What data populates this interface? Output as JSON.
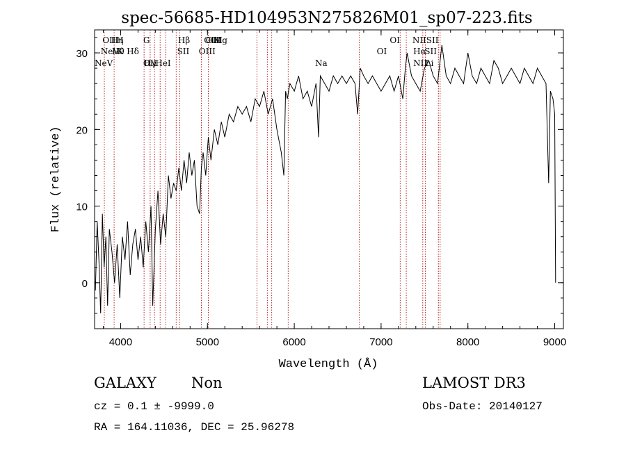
{
  "chart_data": {
    "type": "line",
    "title": "spec-56685-HD104953N275826M01_sp07-223.fits",
    "xlabel": "Wavelength (Å)",
    "ylabel": "Flux (relative)",
    "xlim": [
      3700,
      9100
    ],
    "ylim": [
      -6,
      33
    ],
    "xticks": [
      "4000",
      "5000",
      "6000",
      "7000",
      "8000",
      "9000"
    ],
    "xtick_values": [
      4000,
      5000,
      6000,
      7000,
      8000,
      9000
    ],
    "yticks": [
      "0",
      "10",
      "20",
      "30"
    ],
    "ytick_values": [
      0,
      10,
      20,
      30
    ],
    "grid": false,
    "series": [
      {
        "color": "#000000",
        "x": [
          3710,
          3730,
          3750,
          3770,
          3790,
          3810,
          3830,
          3850,
          3870,
          3900,
          3930,
          3960,
          3990,
          4020,
          4050,
          4080,
          4110,
          4140,
          4170,
          4200,
          4230,
          4260,
          4290,
          4320,
          4350,
          4370,
          4400,
          4430,
          4460,
          4490,
          4520,
          4550,
          4580,
          4610,
          4640,
          4670,
          4700,
          4730,
          4760,
          4790,
          4820,
          4850,
          4880,
          4910,
          4930,
          4950,
          4980,
          5010,
          5040,
          5080,
          5120,
          5160,
          5200,
          5250,
          5300,
          5350,
          5400,
          5450,
          5500,
          5550,
          5600,
          5650,
          5700,
          5750,
          5800,
          5850,
          5880,
          5900,
          5920,
          5950,
          6000,
          6050,
          6100,
          6150,
          6200,
          6250,
          6280,
          6300,
          6350,
          6400,
          6450,
          6500,
          6550,
          6600,
          6650,
          6700,
          6730,
          6760,
          6800,
          6850,
          6900,
          6950,
          7000,
          7050,
          7100,
          7150,
          7200,
          7250,
          7280,
          7300,
          7350,
          7400,
          7450,
          7500,
          7550,
          7600,
          7650,
          7700,
          7750,
          7800,
          7850,
          7900,
          7950,
          8000,
          8050,
          8100,
          8150,
          8200,
          8250,
          8300,
          8350,
          8400,
          8450,
          8500,
          8550,
          8600,
          8650,
          8700,
          8750,
          8800,
          8850,
          8900,
          8930,
          8950,
          8980,
          9000,
          9010
        ],
        "y": [
          -1,
          8,
          3,
          -4,
          9,
          2,
          6,
          -3,
          7,
          4,
          0,
          5,
          -2,
          6,
          3,
          8,
          1,
          5,
          7,
          3,
          6,
          2,
          8,
          4,
          10,
          -3,
          7,
          12,
          5,
          9,
          6,
          14,
          11,
          13,
          12,
          15,
          12,
          16,
          13,
          17,
          14,
          16,
          10,
          9,
          15,
          17,
          14,
          19,
          16,
          20,
          18,
          21,
          19,
          22,
          21,
          23,
          22,
          23,
          21,
          24,
          23,
          25,
          22,
          24,
          20,
          17,
          14,
          25,
          24,
          26,
          25,
          27,
          24,
          25,
          23,
          26,
          19,
          27,
          26,
          25,
          27,
          26,
          27,
          26,
          27,
          26,
          22,
          28,
          27,
          26,
          27,
          26,
          25,
          26,
          27,
          25,
          27,
          24,
          28,
          30,
          27,
          26,
          25,
          28,
          29,
          27,
          26,
          31,
          27,
          26,
          28,
          27,
          26,
          30,
          27,
          26,
          28,
          27,
          26,
          29,
          28,
          26,
          27,
          28,
          27,
          26,
          28,
          27,
          26,
          28,
          27,
          26,
          13,
          25,
          24,
          22,
          0
        ]
      }
    ],
    "lines": [
      {
        "name": "NeV",
        "wave": 3426,
        "upper": false
      },
      {
        "name": "NeV",
        "wave": 3346,
        "upper": true
      },
      {
        "name": "OII",
        "wave": 3727,
        "upper": true
      },
      {
        "name": "Hη",
        "wave": 3835,
        "upper": true
      },
      {
        "name": "H",
        "wave": 3969,
        "upper": true
      },
      {
        "name": "Hθ",
        "wave": 3798,
        "upper": false
      },
      {
        "name": "K",
        "wave": 3934,
        "upper": false
      },
      {
        "name": "Hδ",
        "wave": 4102,
        "upper": false
      },
      {
        "name": "OII",
        "wave": 4300,
        "upper": false
      },
      {
        "name": "HeI",
        "wave": 4471,
        "upper": false
      },
      {
        "name": "SII",
        "wave": 4670,
        "upper": false
      },
      {
        "name": "G",
        "wave": 4304,
        "upper": true
      },
      {
        "name": "OIII",
        "wave": 4959,
        "upper": true
      },
      {
        "name": "Hγ",
        "wave": 4341,
        "upper": false
      },
      {
        "name": "Hβ",
        "wave": 4861,
        "upper": true
      },
      {
        "name": "OIII",
        "wave": 5007,
        "upper": true
      },
      {
        "name": "Mg",
        "wave": 5175,
        "upper": true
      },
      {
        "name": "OIII",
        "wave": 5007,
        "upper": false
      },
      {
        "name": "Na",
        "wave": 5893,
        "upper": false
      },
      {
        "name": "OI",
        "wave": 6300,
        "upper": true
      },
      {
        "name": "OI",
        "wave": 6364,
        "upper": false
      },
      {
        "name": "NII",
        "wave": 6548,
        "upper": true
      },
      {
        "name": "SII",
        "wave": 6717,
        "upper": true
      },
      {
        "name": "Hα",
        "wave": 6563,
        "upper": false
      },
      {
        "name": "SII",
        "wave": 6731,
        "upper": false
      },
      {
        "name": "NII",
        "wave": 6583,
        "upper": false
      },
      {
        "name": "Li",
        "wave": 6708,
        "upper": false
      }
    ],
    "marker_lines": [
      3812,
      3925,
      4270,
      4340,
      4390,
      4455,
      4520,
      4640,
      4680,
      4930,
      5010,
      5570,
      5690,
      5740,
      5930,
      6750,
      7220,
      7290,
      7480,
      7510,
      7660,
      7680
    ],
    "marker_color": "#b22222"
  },
  "info": {
    "class": "GALAXY",
    "subclass": "Non",
    "survey": "LAMOST DR3",
    "cz": "cz = 0.1 ± -9999.0",
    "obs_date": "Obs-Date: 20140127",
    "radec": "RA = 164.11036, DEC =  25.96278"
  }
}
